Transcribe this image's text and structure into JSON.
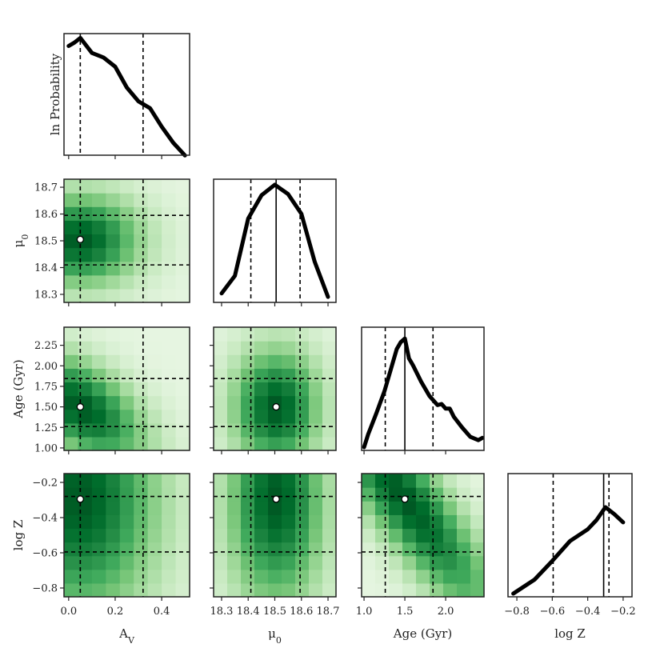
{
  "chart_data": {
    "type": "corner",
    "params": [
      {
        "key": "Av",
        "label": "A_V",
        "range": [
          -0.02,
          0.52
        ],
        "ticks": [
          0.0,
          0.2,
          0.4
        ],
        "tick_labels": [
          "0.0",
          "0.2",
          "0.4"
        ]
      },
      {
        "key": "mu0",
        "label": "μ0",
        "range": [
          18.27,
          18.73
        ],
        "ticks": [
          18.3,
          18.4,
          18.5,
          18.6,
          18.7
        ],
        "tick_labels": [
          "18.3",
          "18.4",
          "18.5",
          "18.6",
          "18.7"
        ]
      },
      {
        "key": "age",
        "label": "Age (Gyr)",
        "range": [
          0.97,
          2.47
        ],
        "ticks": [
          1.0,
          1.25,
          1.5,
          1.75,
          2.0,
          2.25
        ],
        "tick_labels": [
          "1.00",
          "1.25",
          "1.50",
          "1.75",
          "2.00",
          "2.25"
        ],
        "x_ticks": [
          1.0,
          1.5,
          2.0
        ],
        "x_tick_labels": [
          "1.0",
          "1.5",
          "2.0"
        ]
      },
      {
        "key": "logZ",
        "label": "log  Z",
        "range": [
          -0.85,
          -0.15
        ],
        "ticks": [
          -0.8,
          -0.6,
          -0.4,
          -0.2
        ],
        "tick_labels": [
          "−0.8",
          "−0.6",
          "−0.4",
          "−0.2"
        ]
      }
    ],
    "diagonal_ylabel": "ln  Probability",
    "best": {
      "Av": 0.05,
      "mu0": 18.505,
      "age": 1.5,
      "logZ": -0.295
    },
    "lower_lines": {
      "Av": [
        0.05,
        0.32
      ],
      "mu0": [
        18.41,
        18.595
      ],
      "age": [
        1.26,
        1.845
      ],
      "logZ": [
        -0.595,
        -0.28
      ]
    },
    "diag_lines": {
      "Av": {
        "dashed": [
          0.05,
          0.32
        ],
        "solid": []
      },
      "mu0": {
        "dashed": [
          18.41,
          18.595
        ],
        "solid": [
          18.505
        ]
      },
      "age": {
        "dashed": [
          1.26,
          1.845
        ],
        "solid": [
          1.5
        ]
      },
      "logZ": {
        "dashed": [
          -0.595,
          -0.28
        ],
        "solid": [
          -0.31
        ]
      }
    },
    "marginals": {
      "Av": {
        "x": [
          0.0,
          0.025,
          0.05,
          0.1,
          0.15,
          0.2,
          0.25,
          0.3,
          0.35,
          0.4,
          0.45,
          0.5
        ],
        "y": [
          0.92,
          0.95,
          0.99,
          0.86,
          0.82,
          0.74,
          0.56,
          0.44,
          0.38,
          0.22,
          0.08,
          -0.03
        ]
      },
      "mu0": {
        "x": [
          18.3,
          18.35,
          18.4,
          18.45,
          18.5,
          18.55,
          18.6,
          18.65,
          18.7
        ],
        "y": [
          0.05,
          0.2,
          0.69,
          0.89,
          0.98,
          0.9,
          0.73,
          0.32,
          0.02
        ]
      },
      "age": {
        "x": [
          1.0,
          1.05,
          1.15,
          1.25,
          1.35,
          1.4,
          1.45,
          1.5,
          1.55,
          1.6,
          1.7,
          1.8,
          1.9,
          1.95,
          2.0,
          2.05,
          2.1,
          2.2,
          2.3,
          2.4,
          2.45
        ],
        "y": [
          0.0,
          0.11,
          0.29,
          0.48,
          0.72,
          0.84,
          0.9,
          0.93,
          0.76,
          0.7,
          0.56,
          0.44,
          0.36,
          0.37,
          0.33,
          0.33,
          0.26,
          0.17,
          0.09,
          0.06,
          0.08
        ]
      },
      "logZ": {
        "x": [
          -0.82,
          -0.7,
          -0.6,
          -0.5,
          -0.4,
          -0.35,
          -0.3,
          -0.25,
          -0.2
        ],
        "y": [
          0.0,
          0.12,
          0.28,
          0.45,
          0.55,
          0.63,
          0.74,
          0.68,
          0.61
        ]
      }
    },
    "colormap": "Greens"
  }
}
